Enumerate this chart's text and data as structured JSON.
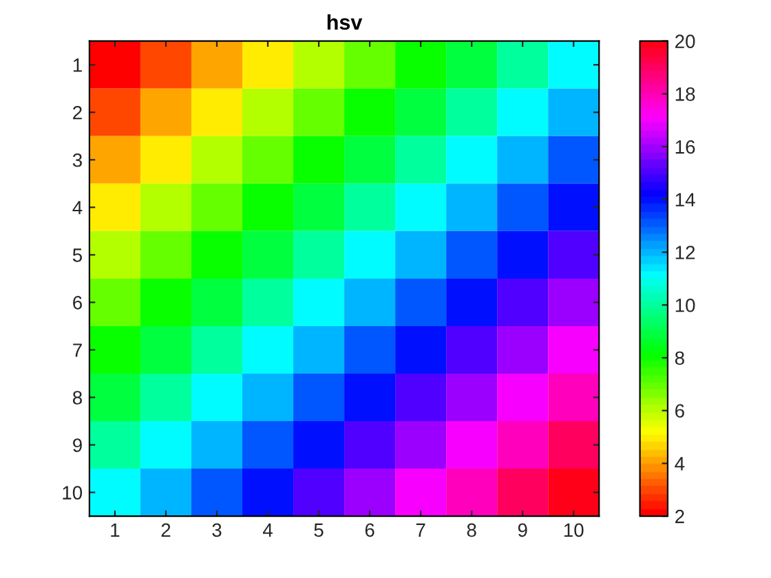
{
  "chart_data": {
    "type": "heatmap",
    "title": "hsv",
    "categories": [
      "1",
      "2",
      "3",
      "4",
      "5",
      "6",
      "7",
      "8",
      "9",
      "10"
    ],
    "y_categories": [
      "1",
      "2",
      "3",
      "4",
      "5",
      "6",
      "7",
      "8",
      "9",
      "10"
    ],
    "cells": [
      [
        2,
        3,
        4,
        5,
        6,
        7,
        8,
        9,
        10,
        11
      ],
      [
        3,
        4,
        5,
        6,
        7,
        8,
        9,
        10,
        11,
        12
      ],
      [
        4,
        5,
        6,
        7,
        8,
        9,
        10,
        11,
        12,
        13
      ],
      [
        5,
        6,
        7,
        8,
        9,
        10,
        11,
        12,
        13,
        14
      ],
      [
        6,
        7,
        8,
        9,
        10,
        11,
        12,
        13,
        14,
        15
      ],
      [
        7,
        8,
        9,
        10,
        11,
        12,
        13,
        14,
        15,
        16
      ],
      [
        8,
        9,
        10,
        11,
        12,
        13,
        14,
        15,
        16,
        17
      ],
      [
        9,
        10,
        11,
        12,
        13,
        14,
        15,
        16,
        17,
        18
      ],
      [
        10,
        11,
        12,
        13,
        14,
        15,
        16,
        17,
        18,
        19
      ],
      [
        11,
        12,
        13,
        14,
        15,
        16,
        17,
        18,
        19,
        20
      ]
    ],
    "clim": [
      2,
      20
    ],
    "cticks": [
      2,
      4,
      6,
      8,
      10,
      12,
      14,
      16,
      18,
      20
    ],
    "grid": false
  }
}
